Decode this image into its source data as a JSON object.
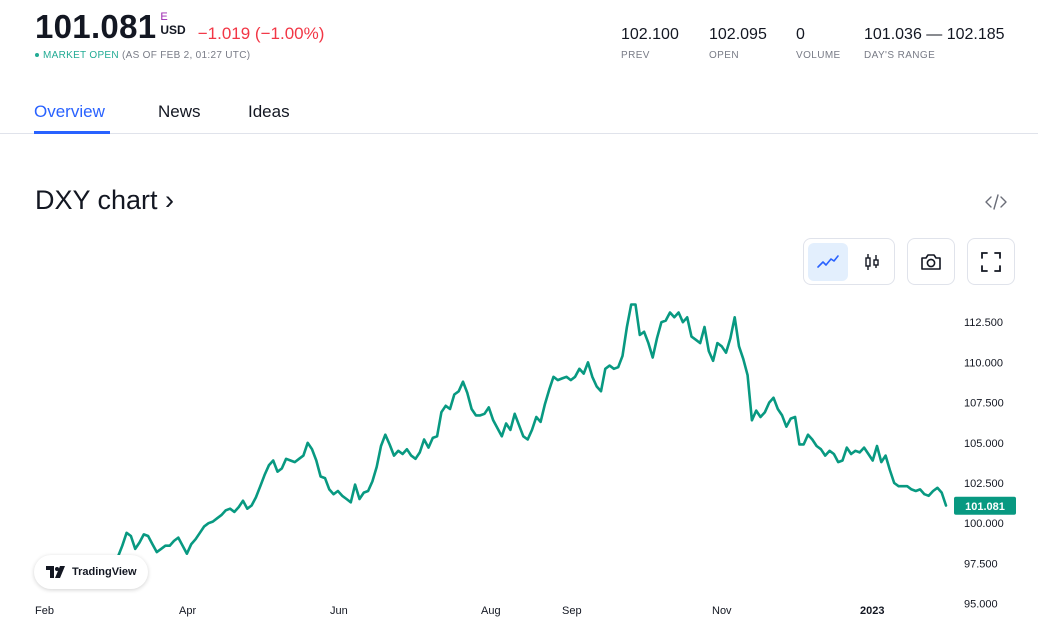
{
  "quote": {
    "price": "101.081",
    "exchange_mark": "E",
    "currency": "USD",
    "change": "−1.019 (−1.00%)",
    "market_status": "MARKET OPEN",
    "as_of": "(AS OF FEB 2, 01:27 UTC)"
  },
  "stats": [
    {
      "value": "102.100",
      "label": "PREV"
    },
    {
      "value": "102.095",
      "label": "OPEN"
    },
    {
      "value": "0",
      "label": "VOLUME"
    },
    {
      "value": "101.036 — 102.185",
      "label": "DAY'S RANGE"
    }
  ],
  "tabs": [
    {
      "label": "Overview",
      "active": true
    },
    {
      "label": "News",
      "active": false
    },
    {
      "label": "Ideas",
      "active": false
    }
  ],
  "chart_title": "DXY chart ›",
  "toolbar": {
    "line_icon": "line-chart-icon",
    "candle_icon": "candlestick-icon",
    "camera_icon": "camera-icon",
    "fullscreen_icon": "fullscreen-icon",
    "embed_icon": "code-embed-icon"
  },
  "branding": {
    "logo_text": "TradingView"
  },
  "colors": {
    "line": "#089981",
    "up": "#22ab94",
    "down": "#f23645",
    "accent": "#2962ff",
    "last_price_bg": "#089981"
  },
  "chart_data": {
    "type": "line",
    "title": "",
    "xlabel": "",
    "ylabel": "",
    "x_ticks": [
      "Feb",
      "Apr",
      "Jun",
      "Aug",
      "Sep",
      "Nov",
      "2023"
    ],
    "y_ticks": [
      "95.000",
      "97.500",
      "100.000",
      "102.500",
      "105.000",
      "107.500",
      "110.000",
      "112.500"
    ],
    "ylim": [
      94.6,
      114.5
    ],
    "last_price": "101.081",
    "series": [
      {
        "values": [
          96.4,
          97.3,
          97.4,
          97.9,
          98.6,
          99.4,
          99.2,
          98.4,
          98.8,
          99.3,
          99.2,
          98.7,
          98.2,
          98.4,
          98.6,
          98.6,
          98.9,
          99.1,
          98.6,
          98.1,
          98.7,
          99.0,
          99.4,
          99.8,
          100.0,
          100.1,
          100.3,
          100.5,
          100.8,
          100.9,
          100.7,
          101.0,
          101.4,
          100.9,
          101.1,
          101.6,
          102.3,
          103.0,
          103.6,
          103.9,
          103.2,
          103.4,
          104.0,
          103.9,
          103.8,
          104.0,
          104.2,
          105.0,
          104.6,
          103.9,
          102.9,
          102.8,
          102.1,
          101.8,
          102.0,
          101.7,
          101.5,
          101.3,
          102.4,
          101.5,
          101.9,
          102.0,
          102.6,
          103.5,
          104.8,
          105.5,
          104.9,
          104.2,
          104.5,
          104.3,
          104.6,
          104.2,
          104.0,
          104.4,
          105.2,
          104.7,
          105.3,
          105.4,
          106.9,
          107.3,
          107.1,
          108.0,
          108.2,
          108.8,
          108.1,
          107.1,
          106.7,
          106.7,
          106.8,
          107.2,
          106.4,
          105.9,
          105.4,
          106.2,
          105.8,
          106.8,
          106.1,
          105.4,
          105.2,
          105.8,
          106.6,
          106.3,
          107.4,
          108.3,
          109.1,
          108.9,
          109.0,
          109.1,
          108.9,
          109.1,
          109.6,
          109.3,
          110.0,
          109.1,
          108.5,
          108.2,
          109.6,
          109.8,
          109.6,
          109.7,
          110.4,
          112.2,
          113.6,
          113.6,
          111.7,
          111.9,
          111.2,
          110.3,
          111.5,
          112.5,
          112.6,
          113.1,
          112.8,
          113.1,
          112.5,
          112.8,
          111.6,
          111.4,
          111.2,
          112.2,
          110.7,
          110.1,
          111.2,
          111.0,
          110.6,
          111.5,
          112.8,
          111.0,
          110.2,
          109.2,
          106.4,
          107.0,
          106.6,
          106.9,
          107.5,
          107.8,
          107.1,
          106.7,
          106.0,
          106.5,
          106.6,
          104.9,
          104.9,
          105.5,
          105.2,
          104.8,
          104.6,
          104.2,
          104.5,
          104.3,
          103.8,
          103.9,
          104.7,
          104.3,
          104.5,
          104.4,
          104.7,
          104.3,
          103.9,
          104.8,
          103.8,
          104.2,
          103.3,
          102.5,
          102.3,
          102.3,
          102.3,
          102.1,
          102.0,
          102.1,
          101.8,
          101.7,
          102.0,
          102.2,
          101.9,
          101.1
        ]
      }
    ]
  }
}
